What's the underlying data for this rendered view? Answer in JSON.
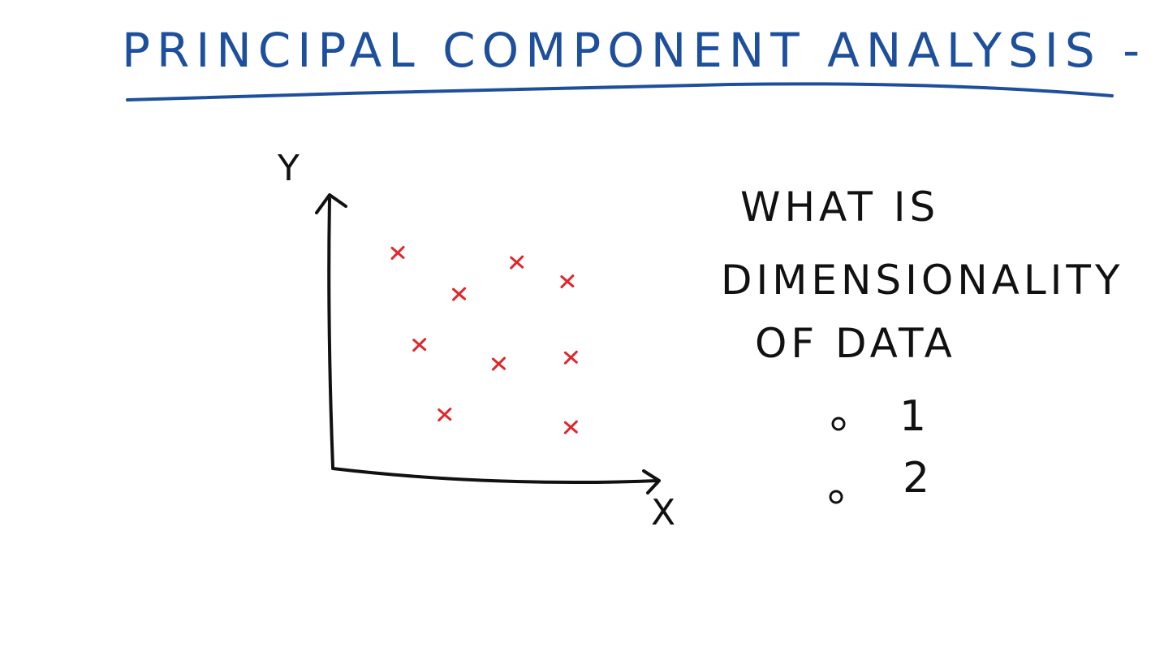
{
  "title": "PRINCIPAL COMPONENT ANALYSIS - PCA",
  "colors": {
    "title": "#1d4f9c",
    "underline": "#1d4f9c",
    "ink": "#111111",
    "points": "#e0262b",
    "background": "#ffffff"
  },
  "plot": {
    "x_label": "X",
    "y_label": "Y",
    "point_marker": "x"
  },
  "chart_data": {
    "type": "scatter",
    "xlabel": "X",
    "ylabel": "Y",
    "points": [
      {
        "x": 1.8,
        "y": 6.8
      },
      {
        "x": 5.1,
        "y": 6.5
      },
      {
        "x": 6.5,
        "y": 5.9
      },
      {
        "x": 3.5,
        "y": 5.5
      },
      {
        "x": 2.4,
        "y": 3.9
      },
      {
        "x": 6.6,
        "y": 3.5
      },
      {
        "x": 4.6,
        "y": 3.3
      },
      {
        "x": 3.1,
        "y": 1.7
      },
      {
        "x": 6.6,
        "y": 1.3
      }
    ],
    "xlim": [
      0,
      9
    ],
    "ylim": [
      0,
      8.5
    ],
    "grid": false
  },
  "question": {
    "lines": [
      "WHAT IS",
      "DIMENSIONALITY",
      "OF DATA"
    ]
  },
  "options": [
    {
      "label": "1"
    },
    {
      "label": "2"
    }
  ]
}
